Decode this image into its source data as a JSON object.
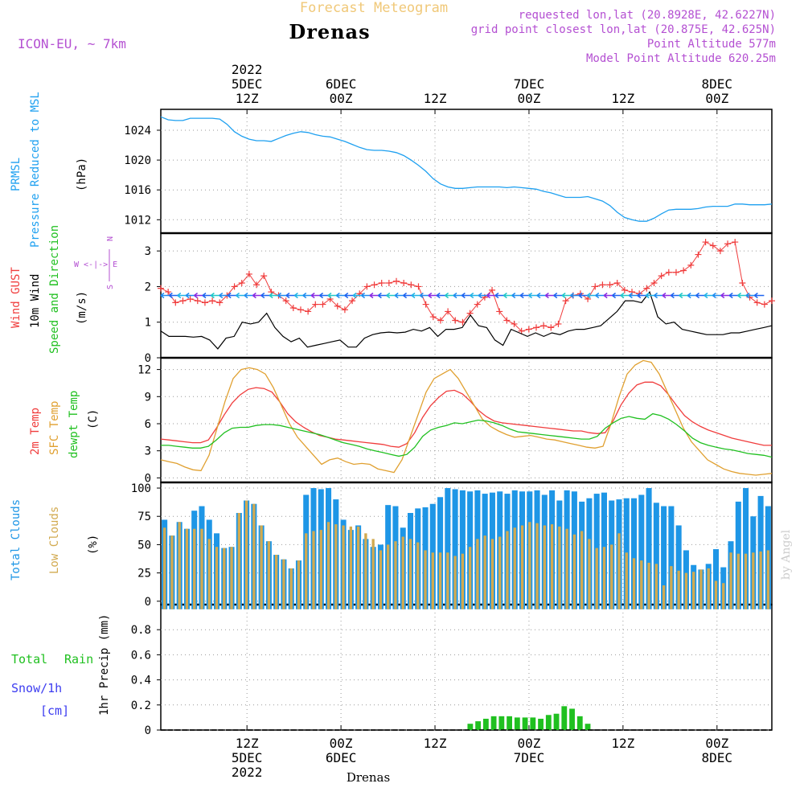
{
  "header": {
    "product": "Forecast Meteogram",
    "location": "Drenas",
    "model": "ICON-EU, ~ 7km",
    "requested": "requested lon,lat (20.8928E, 42.6227N)",
    "gridpoint": "grid point closest lon,lat (20.875E, 42.625N)",
    "point_alt": "Point Altitude 577m",
    "model_alt": "Model Point Altitude 620.25m",
    "footer_location": "Drenas",
    "watermark": "by Angel"
  },
  "time_axis": {
    "start_hour": 0,
    "end_hour": 78,
    "top_ticks": [
      {
        "hour": 11,
        "lines": [
          "2022",
          "5DEC",
          "12Z"
        ]
      },
      {
        "hour": 23,
        "lines": [
          "6DEC",
          "00Z"
        ]
      },
      {
        "hour": 35,
        "lines": [
          "12Z"
        ]
      },
      {
        "hour": 47,
        "lines": [
          "7DEC",
          "00Z"
        ]
      },
      {
        "hour": 59,
        "lines": [
          "12Z"
        ]
      },
      {
        "hour": 71,
        "lines": [
          "8DEC",
          "00Z"
        ]
      }
    ],
    "bottom_ticks": [
      {
        "hour": 11,
        "lines": [
          "12Z",
          "5DEC",
          "2022"
        ]
      },
      {
        "hour": 23,
        "lines": [
          "00Z",
          "6DEC"
        ]
      },
      {
        "hour": 35,
        "lines": [
          "12Z"
        ]
      },
      {
        "hour": 47,
        "lines": [
          "00Z",
          "7DEC"
        ]
      },
      {
        "hour": 59,
        "lines": [
          "12Z"
        ]
      },
      {
        "hour": 71,
        "lines": [
          "00Z",
          "8DEC"
        ]
      }
    ]
  },
  "labels": {
    "pressure": {
      "line1": "PRMSL",
      "line2": "Pressure Reduced to MSL",
      "unit": "(hPa)"
    },
    "wind": {
      "gust": "Wind GUST",
      "wind10": "10m Wind",
      "speed_dir": "Speed and Direction",
      "unit": "(m/s)",
      "compass_n": "N",
      "compass_we": "W <-|-> E",
      "compass_s": "S"
    },
    "temp": {
      "t2m": "2m Temp",
      "sfc": "SFC Temp",
      "dewpt": "dewpt Temp",
      "unit": "(C)"
    },
    "clouds": {
      "total": "Total Clouds",
      "low": "Low Clouds",
      "unit": "(%)"
    },
    "precip": {
      "total": "Total",
      "rain": "Rain",
      "snow": "Snow/1h",
      "snow_unit": "[cm]",
      "axis": "1hr Precip (mm)"
    }
  },
  "colors": {
    "pressure": "#1ea0f0",
    "gust": "#f03c3c",
    "wind10": "#000000",
    "t2m": "#f03c3c",
    "sfc": "#e0a030",
    "dewpt": "#20c020",
    "total_cloud": "#1e96e6",
    "low_cloud": "#d2aa50",
    "rain": "#20c020",
    "snow": "#3c3cf0",
    "violet": "#b450d2",
    "header": "#f0c878"
  },
  "chart_data": [
    {
      "type": "line",
      "title": "PRMSL Pressure Reduced to MSL",
      "ylabel": "(hPa)",
      "ylim": [
        1010.2,
        1026.8
      ],
      "yticks": [
        1012,
        1016,
        1020,
        1024
      ],
      "series": [
        {
          "name": "PRMSL",
          "values": [
            1025.8,
            1025.4,
            1025.3,
            1025.3,
            1025.6,
            1025.6,
            1025.6,
            1025.6,
            1025.5,
            1024.8,
            1023.8,
            1023.2,
            1022.8,
            1022.6,
            1022.6,
            1022.5,
            1022.9,
            1023.3,
            1023.6,
            1023.8,
            1023.7,
            1023.4,
            1023.2,
            1023.1,
            1022.8,
            1022.5,
            1022.1,
            1021.7,
            1021.4,
            1021.3,
            1021.3,
            1021.2,
            1021.0,
            1020.6,
            1020.0,
            1019.3,
            1018.5,
            1017.5,
            1016.8,
            1016.4,
            1016.2,
            1016.2,
            1016.3,
            1016.4,
            1016.4,
            1016.4,
            1016.4,
            1016.3,
            1016.4,
            1016.3,
            1016.2,
            1016.1,
            1015.8,
            1015.6,
            1015.3,
            1015.0,
            1015.0,
            1015.0,
            1015.1,
            1014.8,
            1014.5,
            1013.9,
            1013.0,
            1012.3,
            1012.0,
            1011.8,
            1011.8,
            1012.2,
            1012.8,
            1013.3,
            1013.4,
            1013.4,
            1013.4,
            1013.5,
            1013.7,
            1013.8,
            1013.8,
            1013.8,
            1014.1,
            1014.1,
            1014.0,
            1014.0,
            1014.0,
            1014.1
          ]
        }
      ]
    },
    {
      "type": "line",
      "title": "Wind GUST / 10m Wind Speed and Direction",
      "ylabel": "(m/s)",
      "ylim": [
        0,
        3.5
      ],
      "yticks": [
        0,
        1,
        2,
        3
      ],
      "series": [
        {
          "name": "Wind GUST",
          "values": [
            1.95,
            1.85,
            1.55,
            1.6,
            1.65,
            1.6,
            1.55,
            1.6,
            1.55,
            1.75,
            2.0,
            2.1,
            2.35,
            2.05,
            2.3,
            1.85,
            1.75,
            1.6,
            1.4,
            1.35,
            1.3,
            1.5,
            1.5,
            1.65,
            1.45,
            1.35,
            1.6,
            1.8,
            2.0,
            2.05,
            2.1,
            2.1,
            2.15,
            2.1,
            2.05,
            2.0,
            1.5,
            1.15,
            1.05,
            1.3,
            1.05,
            1.0,
            1.25,
            1.5,
            1.7,
            1.9,
            1.3,
            1.05,
            0.95,
            0.75,
            0.8,
            0.85,
            0.9,
            0.85,
            0.95,
            1.6,
            1.75,
            1.8,
            1.65,
            2.0,
            2.05,
            2.05,
            2.1,
            1.9,
            1.85,
            1.8,
            1.95,
            2.1,
            2.3,
            2.4,
            2.4,
            2.45,
            2.6,
            2.9,
            3.25,
            3.15,
            3.0,
            3.2,
            3.25,
            2.1,
            1.7,
            1.55,
            1.5,
            1.6
          ]
        },
        {
          "name": "10m Wind",
          "values": [
            0.75,
            0.6,
            0.6,
            0.6,
            0.58,
            0.6,
            0.5,
            0.25,
            0.55,
            0.6,
            1.0,
            0.95,
            1.0,
            1.25,
            0.85,
            0.6,
            0.45,
            0.55,
            0.3,
            0.35,
            0.4,
            0.45,
            0.5,
            0.3,
            0.3,
            0.55,
            0.65,
            0.7,
            0.72,
            0.7,
            0.72,
            0.8,
            0.75,
            0.85,
            0.6,
            0.8,
            0.8,
            0.85,
            1.2,
            0.9,
            0.85,
            0.5,
            0.35,
            0.8,
            0.7,
            0.6,
            0.7,
            0.6,
            0.7,
            0.65,
            0.75,
            0.8,
            0.8,
            0.85,
            0.9,
            1.1,
            1.3,
            1.6,
            1.6,
            1.55,
            1.85,
            1.15,
            0.95,
            1.0,
            0.8,
            0.75,
            0.7,
            0.65,
            0.65,
            0.65,
            0.7,
            0.7,
            0.75,
            0.8,
            0.85,
            0.9
          ]
        }
      ]
    },
    {
      "type": "line",
      "title": "2m Temp / SFC Temp / dewpt Temp",
      "ylabel": "(C)",
      "ylim": [
        -0.5,
        13.3
      ],
      "yticks": [
        0,
        3,
        6,
        9,
        12
      ],
      "series": [
        {
          "name": "2m Temp",
          "values": [
            4.3,
            4.2,
            4.1,
            4.0,
            3.9,
            3.9,
            4.2,
            5.5,
            7.0,
            8.3,
            9.2,
            9.8,
            10.0,
            9.9,
            9.5,
            8.4,
            7.1,
            6.2,
            5.6,
            5.1,
            4.7,
            4.5,
            4.3,
            4.2,
            4.1,
            4.0,
            3.9,
            3.8,
            3.7,
            3.5,
            3.4,
            3.8,
            5.0,
            6.7,
            8.0,
            8.9,
            9.6,
            9.7,
            9.3,
            8.5,
            7.5,
            6.8,
            6.3,
            6.1,
            6.0,
            5.9,
            5.8,
            5.7,
            5.6,
            5.5,
            5.4,
            5.3,
            5.2,
            5.2,
            5.0,
            4.9,
            5.0,
            6.3,
            8.1,
            9.4,
            10.3,
            10.6,
            10.6,
            10.2,
            9.2,
            8.0,
            6.9,
            6.2,
            5.7,
            5.3,
            5.0,
            4.7,
            4.4,
            4.2,
            4.0,
            3.8,
            3.6,
            3.6
          ]
        },
        {
          "name": "SFC Temp",
          "values": [
            2.0,
            1.8,
            1.6,
            1.2,
            0.9,
            0.8,
            2.5,
            5.5,
            8.5,
            11.0,
            12.0,
            12.2,
            12.0,
            11.5,
            10.0,
            8.0,
            6.0,
            4.5,
            3.5,
            2.5,
            1.5,
            2.0,
            2.2,
            1.8,
            1.5,
            1.6,
            1.5,
            1.0,
            0.8,
            0.6,
            2.0,
            4.5,
            7.0,
            9.5,
            11.0,
            11.5,
            12.0,
            11.0,
            9.5,
            8.0,
            6.5,
            5.7,
            5.2,
            4.8,
            4.5,
            4.6,
            4.7,
            4.5,
            4.3,
            4.2,
            4.0,
            3.8,
            3.6,
            3.4,
            3.3,
            3.5,
            6.0,
            9.0,
            11.5,
            12.5,
            13.0,
            12.8,
            11.5,
            9.5,
            7.5,
            5.5,
            4.0,
            3.0,
            2.0,
            1.5,
            1.0,
            0.7,
            0.5,
            0.4,
            0.3,
            0.4,
            0.5
          ]
        },
        {
          "name": "dewpt Temp",
          "values": [
            3.6,
            3.6,
            3.5,
            3.4,
            3.3,
            3.3,
            3.5,
            4.2,
            5.0,
            5.5,
            5.6,
            5.6,
            5.8,
            5.9,
            5.9,
            5.8,
            5.6,
            5.4,
            5.2,
            5.0,
            4.8,
            4.5,
            4.2,
            3.9,
            3.7,
            3.5,
            3.2,
            3.0,
            2.8,
            2.6,
            2.4,
            2.6,
            3.4,
            4.6,
            5.3,
            5.6,
            5.8,
            6.1,
            6.0,
            6.2,
            6.4,
            6.3,
            6.1,
            5.8,
            5.4,
            5.1,
            5.0,
            4.9,
            4.8,
            4.7,
            4.6,
            4.5,
            4.4,
            4.3,
            4.3,
            4.6,
            5.5,
            6.1,
            6.6,
            6.8,
            6.6,
            6.5,
            7.1,
            6.9,
            6.5,
            5.9,
            5.2,
            4.4,
            3.9,
            3.6,
            3.4,
            3.2,
            3.1,
            2.9,
            2.7,
            2.6,
            2.5,
            2.3
          ]
        }
      ]
    },
    {
      "type": "bar",
      "title": "Total Clouds / Low Clouds",
      "ylabel": "(%)",
      "ylim": [
        -3,
        105
      ],
      "yticks": [
        0,
        25,
        50,
        75,
        100
      ],
      "series": [
        {
          "name": "Total Clouds",
          "values": [
            72,
            58,
            70,
            64,
            80,
            84,
            72,
            60,
            47,
            48,
            78,
            89,
            86,
            67,
            53,
            41,
            37,
            29,
            36,
            94,
            100,
            99,
            100,
            90,
            72,
            63,
            67,
            55,
            48,
            50,
            85,
            84,
            65,
            78,
            82,
            83,
            86,
            92,
            100,
            99,
            98,
            97,
            98,
            95,
            96,
            97,
            95,
            98,
            97,
            97,
            98,
            94,
            98,
            89,
            98,
            97,
            88,
            91,
            95,
            96,
            89,
            90,
            91,
            91,
            94,
            100,
            87,
            84,
            84,
            67,
            45,
            32,
            28,
            33,
            46,
            30,
            53,
            88,
            100,
            75,
            93,
            84
          ]
        },
        {
          "name": "Low Clouds",
          "values": [
            65,
            58,
            70,
            64,
            64,
            64,
            55,
            48,
            47,
            48,
            78,
            89,
            86,
            67,
            53,
            41,
            37,
            29,
            36,
            60,
            62,
            63,
            70,
            68,
            67,
            66,
            66,
            60,
            55,
            45,
            50,
            53,
            57,
            55,
            52,
            45,
            43,
            43,
            43,
            40,
            42,
            48,
            55,
            58,
            55,
            57,
            62,
            65,
            67,
            70,
            69,
            67,
            68,
            66,
            64,
            59,
            62,
            55,
            47,
            48,
            50,
            60,
            43,
            38,
            36,
            34,
            33,
            14,
            31,
            27,
            25,
            26,
            28,
            29,
            18,
            16,
            43,
            42,
            42,
            43,
            44,
            45
          ]
        }
      ]
    },
    {
      "type": "bar",
      "title": "1hr Precip (mm)",
      "ylabel": "1hr Precip (mm)",
      "ylim": [
        0,
        1.0
      ],
      "yticks": [
        0,
        0.2,
        0.4,
        0.6,
        0.8
      ],
      "series": [
        {
          "name": "Total Rain",
          "values": [
            0,
            0,
            0,
            0,
            0,
            0,
            0,
            0,
            0,
            0,
            0,
            0,
            0,
            0,
            0,
            0,
            0,
            0,
            0,
            0,
            0,
            0,
            0,
            0,
            0,
            0,
            0,
            0,
            0,
            0,
            0,
            0,
            0,
            0,
            0,
            0,
            0,
            0,
            0,
            0.05,
            0.07,
            0.09,
            0.11,
            0.11,
            0.11,
            0.1,
            0.1,
            0.1,
            0.09,
            0.12,
            0.13,
            0.19,
            0.17,
            0.11,
            0.05,
            0,
            0,
            0,
            0,
            0,
            0,
            0,
            0,
            0,
            0,
            0,
            0,
            0,
            0,
            0,
            0,
            0,
            0,
            0,
            0,
            0,
            0,
            0
          ]
        },
        {
          "name": "Snow/1h",
          "values": [
            0,
            0,
            0,
            0,
            0,
            0,
            0,
            0,
            0,
            0,
            0,
            0,
            0,
            0,
            0,
            0,
            0,
            0,
            0,
            0,
            0,
            0,
            0,
            0,
            0,
            0,
            0,
            0,
            0,
            0,
            0,
            0,
            0,
            0,
            0,
            0,
            0,
            0,
            0,
            0,
            0,
            0,
            0,
            0,
            0,
            0,
            0,
            0,
            0,
            0,
            0,
            0,
            0,
            0,
            0,
            0,
            0,
            0,
            0,
            0,
            0,
            0,
            0,
            0,
            0,
            0,
            0,
            0,
            0,
            0,
            0,
            0,
            0,
            0,
            0,
            0,
            0,
            0
          ]
        }
      ]
    }
  ]
}
